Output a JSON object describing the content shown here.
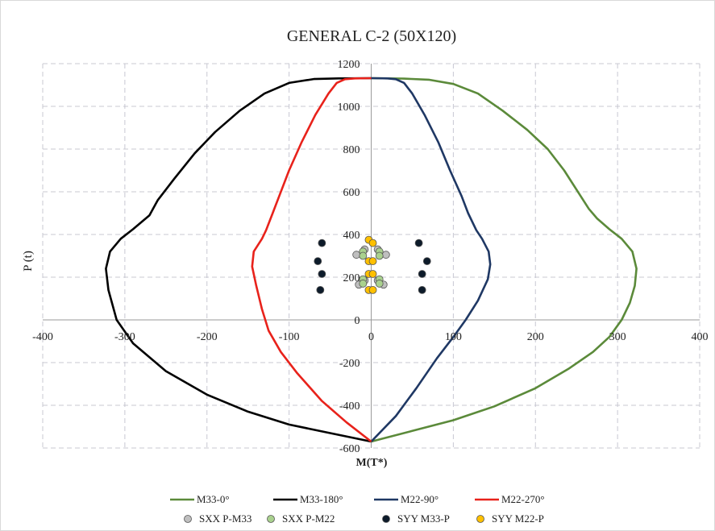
{
  "chart_data": {
    "type": "scatter",
    "title": "GENERAL   C-2  (50X120)",
    "xlabel": "M(T*)",
    "ylabel": "P (t)",
    "xlim": [
      -400,
      400
    ],
    "ylim": [
      -600,
      1200
    ],
    "xticks": [
      -400,
      -300,
      -200,
      -100,
      0,
      100,
      200,
      300,
      400
    ],
    "yticks": [
      -600,
      -400,
      -200,
      0,
      200,
      400,
      600,
      800,
      1000,
      1200
    ],
    "grid": true,
    "legend_position": "bottom",
    "series": [
      {
        "name": "M33-0°",
        "kind": "line",
        "color": "#5b8a3a",
        "points": [
          [
            0,
            -570
          ],
          [
            50,
            -520
          ],
          [
            100,
            -470
          ],
          [
            150,
            -405
          ],
          [
            200,
            -320
          ],
          [
            240,
            -230
          ],
          [
            270,
            -150
          ],
          [
            290,
            -80
          ],
          [
            305,
            0
          ],
          [
            315,
            80
          ],
          [
            321,
            160
          ],
          [
            323,
            240
          ],
          [
            318,
            320
          ],
          [
            305,
            380
          ],
          [
            290,
            425
          ],
          [
            275,
            475
          ],
          [
            265,
            520
          ],
          [
            255,
            580
          ],
          [
            235,
            700
          ],
          [
            215,
            800
          ],
          [
            190,
            890
          ],
          [
            160,
            980
          ],
          [
            130,
            1060
          ],
          [
            100,
            1105
          ],
          [
            70,
            1125
          ],
          [
            40,
            1130
          ],
          [
            0,
            1132
          ]
        ]
      },
      {
        "name": "M33-180°",
        "kind": "line",
        "color": "#000000",
        "points": [
          [
            0,
            -570
          ],
          [
            -50,
            -530
          ],
          [
            -100,
            -490
          ],
          [
            -150,
            -430
          ],
          [
            -200,
            -350
          ],
          [
            -250,
            -240
          ],
          [
            -290,
            -110
          ],
          [
            -310,
            0
          ],
          [
            -320,
            140
          ],
          [
            -323,
            240
          ],
          [
            -318,
            320
          ],
          [
            -305,
            380
          ],
          [
            -290,
            425
          ],
          [
            -270,
            490
          ],
          [
            -260,
            560
          ],
          [
            -240,
            660
          ],
          [
            -215,
            780
          ],
          [
            -190,
            880
          ],
          [
            -160,
            980
          ],
          [
            -130,
            1060
          ],
          [
            -100,
            1110
          ],
          [
            -70,
            1128
          ],
          [
            -40,
            1131
          ],
          [
            0,
            1132
          ]
        ]
      },
      {
        "name": "M22-90°",
        "kind": "line",
        "color": "#1f3864",
        "points": [
          [
            0,
            -570
          ],
          [
            30,
            -450
          ],
          [
            55,
            -320
          ],
          [
            80,
            -180
          ],
          [
            100,
            -80
          ],
          [
            115,
            0
          ],
          [
            130,
            90
          ],
          [
            142,
            190
          ],
          [
            145,
            260
          ],
          [
            143,
            320
          ],
          [
            135,
            380
          ],
          [
            128,
            420
          ],
          [
            118,
            500
          ],
          [
            110,
            580
          ],
          [
            96,
            700
          ],
          [
            82,
            830
          ],
          [
            65,
            960
          ],
          [
            50,
            1060
          ],
          [
            40,
            1110
          ],
          [
            30,
            1127
          ],
          [
            20,
            1131
          ],
          [
            0,
            1132
          ]
        ]
      },
      {
        "name": "M22-270°",
        "kind": "line",
        "color": "#e8221b",
        "points": [
          [
            0,
            -570
          ],
          [
            -30,
            -480
          ],
          [
            -60,
            -380
          ],
          [
            -90,
            -250
          ],
          [
            -110,
            -150
          ],
          [
            -125,
            -50
          ],
          [
            -133,
            50
          ],
          [
            -140,
            160
          ],
          [
            -145,
            250
          ],
          [
            -143,
            320
          ],
          [
            -133,
            380
          ],
          [
            -128,
            420
          ],
          [
            -120,
            500
          ],
          [
            -112,
            580
          ],
          [
            -100,
            700
          ],
          [
            -85,
            830
          ],
          [
            -68,
            960
          ],
          [
            -52,
            1060
          ],
          [
            -42,
            1110
          ],
          [
            -32,
            1127
          ],
          [
            -20,
            1131
          ],
          [
            0,
            1132
          ]
        ]
      },
      {
        "name": "SXX P-M33",
        "kind": "marker",
        "color": "#bfbfbf",
        "points": [
          [
            -18,
            305
          ],
          [
            18,
            305
          ],
          [
            -15,
            165
          ],
          [
            15,
            165
          ],
          [
            -8,
            330
          ],
          [
            8,
            330
          ],
          [
            -8,
            185
          ],
          [
            8,
            185
          ]
        ]
      },
      {
        "name": "SXX P-M22",
        "kind": "marker",
        "color": "#a9d18e",
        "points": [
          [
            -10,
            320
          ],
          [
            10,
            320
          ],
          [
            -10,
            300
          ],
          [
            10,
            300
          ],
          [
            -10,
            190
          ],
          [
            10,
            190
          ],
          [
            -10,
            170
          ],
          [
            10,
            170
          ]
        ]
      },
      {
        "name": "SYY M33-P",
        "kind": "marker",
        "color": "#0d1b2a",
        "points": [
          [
            -60,
            360
          ],
          [
            58,
            360
          ],
          [
            -65,
            275
          ],
          [
            68,
            275
          ],
          [
            -60,
            215
          ],
          [
            62,
            215
          ],
          [
            -62,
            140
          ],
          [
            62,
            140
          ]
        ]
      },
      {
        "name": "SYY M22-P",
        "kind": "marker",
        "color": "#ffc000",
        "points": [
          [
            -3,
            375
          ],
          [
            2,
            360
          ],
          [
            -3,
            275
          ],
          [
            2,
            275
          ],
          [
            -3,
            215
          ],
          [
            2,
            215
          ],
          [
            -3,
            140
          ],
          [
            2,
            140
          ]
        ]
      }
    ]
  }
}
